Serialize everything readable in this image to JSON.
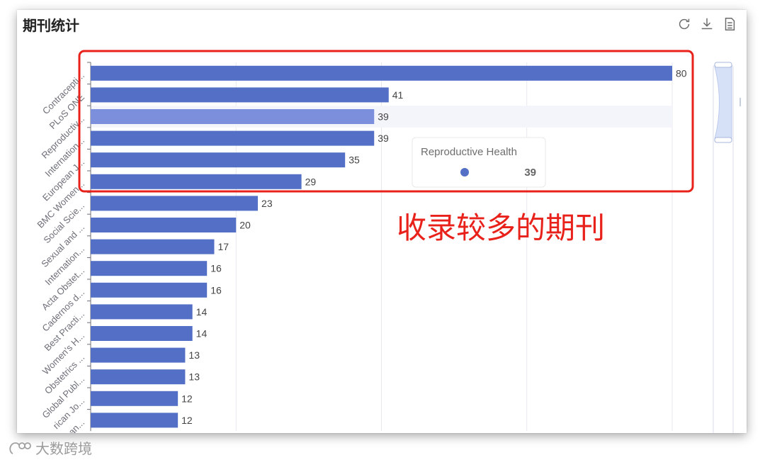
{
  "panel": {
    "title": "期刊统计"
  },
  "toolbar": {
    "icons": [
      "refresh-icon",
      "download-icon",
      "data-view-icon"
    ]
  },
  "annotation": {
    "text": "收录较多的期刊",
    "color": "#e8221b"
  },
  "tooltip": {
    "title": "Reproductive Health",
    "value": "39"
  },
  "watermark": {
    "text": "大数跨境"
  },
  "colors": {
    "bar": "#5470c6",
    "bar_highlight": "#7b8fdd",
    "annotation": "#e8221b"
  },
  "chart_data": {
    "type": "bar",
    "orientation": "horizontal",
    "categories": [
      "Contracepti...",
      "PLoS ONE",
      "Reproductiv...",
      "Internation...",
      "European J...",
      "BMC Women...",
      "Social Scie...",
      "Sexual and ...",
      "Internation...",
      "Acta Obstet...",
      "Cadernos d...",
      "Best Practi...",
      "Women's H...",
      "Obstetrics ...",
      "Global Publ...",
      "rican Jo...",
      "an..."
    ],
    "values": [
      80,
      41,
      39,
      39,
      35,
      29,
      23,
      20,
      17,
      16,
      16,
      14,
      14,
      13,
      13,
      12,
      12
    ],
    "highlight_index": 2,
    "xlim": [
      0,
      80
    ],
    "grid": true,
    "data_labels": true
  }
}
